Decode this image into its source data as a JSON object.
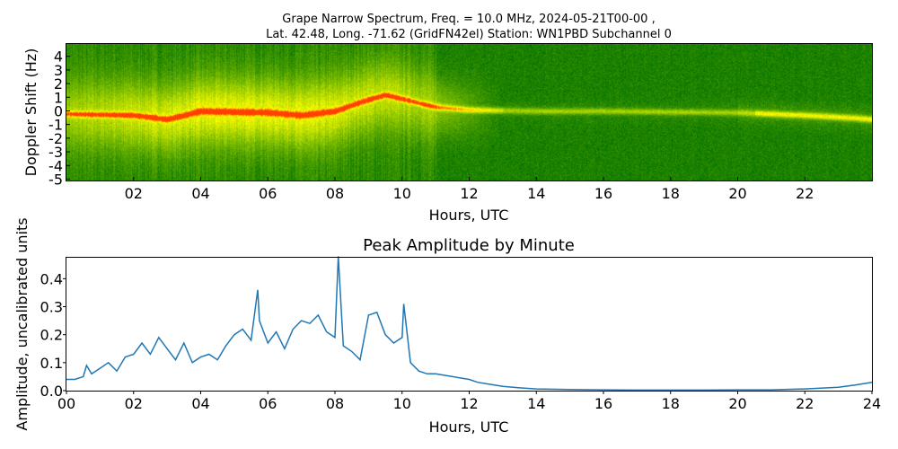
{
  "chart_data": [
    {
      "type": "heatmap",
      "title_line1": "Grape Narrow Spectrum, Freq. = 10.0 MHz, 2024-05-21T00-00 ,",
      "title_line2": "Lat.  42.48, Long. -71.62 (GridFN42el) Station: WN1PBD Subchannel 0",
      "xlabel": "Hours, UTC",
      "ylabel": "Doppler Shift (Hz)",
      "xlim": [
        0,
        24
      ],
      "ylim": [
        -5.1,
        4.9
      ],
      "xticks": [
        2,
        4,
        6,
        8,
        10,
        12,
        14,
        16,
        18,
        20,
        22
      ],
      "xtick_labels": [
        "02",
        "04",
        "06",
        "08",
        "10",
        "12",
        "14",
        "16",
        "18",
        "20",
        "22"
      ],
      "yticks": [
        4,
        3,
        2,
        1,
        0,
        -1,
        -2,
        -3,
        -4,
        -5
      ],
      "ytick_labels": [
        "4",
        "3",
        "2",
        "1",
        "0",
        "-1",
        "-2",
        "-3",
        "-4",
        "-5"
      ],
      "colormap": [
        "#007000",
        "#7fbf00",
        "#ffff00",
        "#ff4000"
      ],
      "peak_trace": {
        "x": [
          0,
          2,
          3,
          4,
          6,
          7,
          8,
          8.8,
          9.5,
          10.5,
          11,
          12,
          14,
          16,
          20,
          22,
          23.5,
          24
        ],
        "y": [
          -0.2,
          -0.3,
          -0.6,
          0,
          -0.1,
          -0.3,
          0,
          0.7,
          1.2,
          0.6,
          0.3,
          0.1,
          0,
          0,
          -0.1,
          -0.3,
          -0.5,
          -0.6
        ]
      }
    },
    {
      "type": "line",
      "title": "Peak Amplitude by Minute",
      "xlabel": "Hours, UTC",
      "ylabel": "Amplitude, uncalibrated units",
      "xlim": [
        0,
        24
      ],
      "ylim": [
        0,
        0.475
      ],
      "xticks": [
        0,
        2,
        4,
        6,
        8,
        10,
        12,
        14,
        16,
        18,
        20,
        22,
        24
      ],
      "xtick_labels": [
        "00",
        "02",
        "04",
        "06",
        "08",
        "10",
        "12",
        "14",
        "16",
        "18",
        "20",
        "22",
        "24"
      ],
      "yticks": [
        0,
        0.1,
        0.2,
        0.3,
        0.4
      ],
      "ytick_labels": [
        "0.0",
        "0.1",
        "0.2",
        "0.3",
        "0.4"
      ],
      "color": "#1f77b4",
      "x": [
        0,
        0.25,
        0.5,
        0.6,
        0.75,
        1,
        1.25,
        1.5,
        1.75,
        2,
        2.25,
        2.5,
        2.75,
        3,
        3.25,
        3.5,
        3.75,
        4,
        4.25,
        4.5,
        4.75,
        5,
        5.25,
        5.5,
        5.7,
        5.75,
        6,
        6.25,
        6.5,
        6.75,
        7,
        7.25,
        7.5,
        7.75,
        8,
        8.1,
        8.25,
        8.5,
        8.75,
        9,
        9.25,
        9.5,
        9.75,
        10,
        10.05,
        10.25,
        10.5,
        10.75,
        11,
        11.5,
        12,
        12.25,
        12.5,
        13,
        13.5,
        14,
        15,
        16,
        17,
        18,
        19,
        20,
        21,
        22,
        23,
        23.5,
        24
      ],
      "y": [
        0.04,
        0.04,
        0.05,
        0.09,
        0.06,
        0.08,
        0.1,
        0.07,
        0.12,
        0.13,
        0.17,
        0.13,
        0.19,
        0.15,
        0.11,
        0.17,
        0.1,
        0.12,
        0.13,
        0.11,
        0.16,
        0.2,
        0.22,
        0.18,
        0.36,
        0.25,
        0.17,
        0.21,
        0.15,
        0.22,
        0.25,
        0.24,
        0.27,
        0.21,
        0.19,
        0.48,
        0.16,
        0.14,
        0.11,
        0.27,
        0.28,
        0.2,
        0.17,
        0.19,
        0.31,
        0.1,
        0.07,
        0.06,
        0.06,
        0.05,
        0.04,
        0.03,
        0.025,
        0.015,
        0.01,
        0.006,
        0.004,
        0.003,
        0.002,
        0.002,
        0.002,
        0.003,
        0.003,
        0.006,
        0.012,
        0.02,
        0.03
      ]
    }
  ]
}
